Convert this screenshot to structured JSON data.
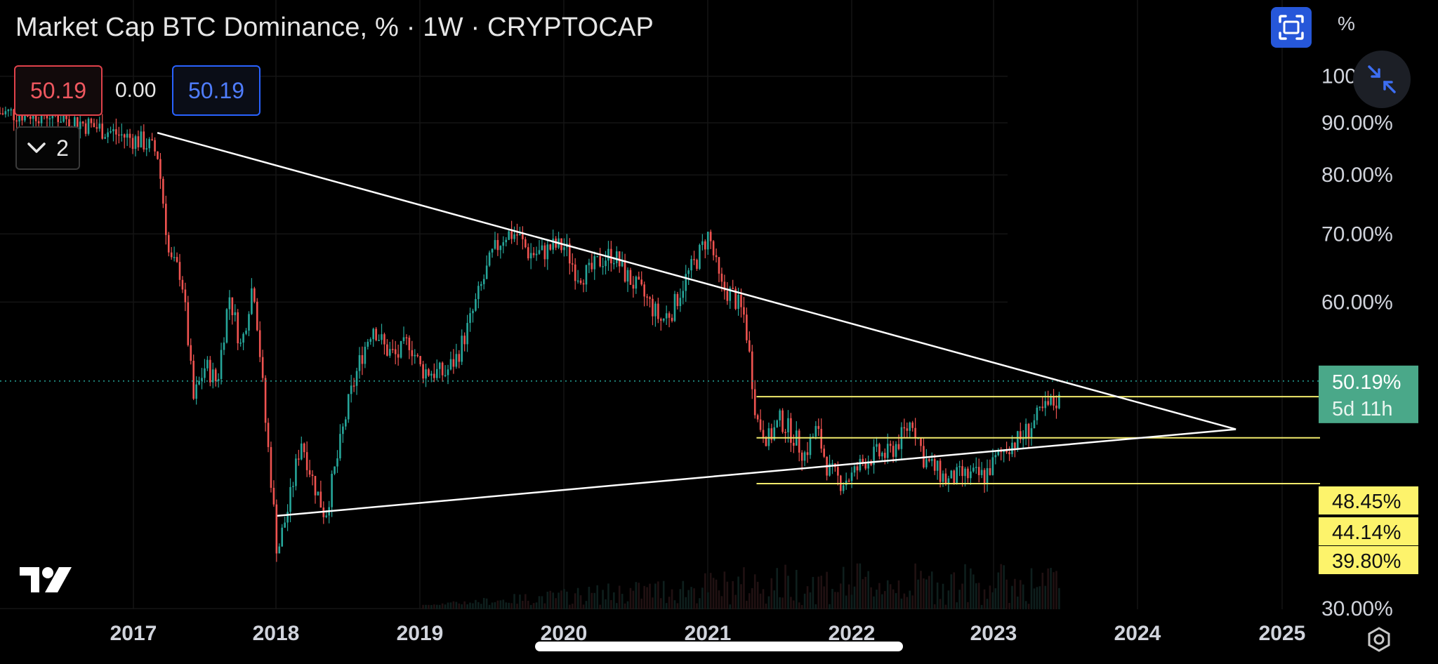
{
  "header": {
    "title": "Market Cap BTC Dominance, % · 1W · CRYPTOCAP",
    "values": {
      "sell": "50.19",
      "spread": "0.00",
      "buy": "50.19"
    },
    "indicators_toggle": {
      "count": "2"
    },
    "percent_mode_label": "%"
  },
  "icons": {
    "fullscreen": "fullscreen-icon",
    "shrink": "shrink-arrows-icon",
    "logo": "tradingview-logo-icon",
    "settings": "settings-gear-icon",
    "chevron": "chevron-down-icon"
  },
  "colors": {
    "up": "#26a69a",
    "down": "#ef5350",
    "trendline": "#ffffff",
    "support_lines": "#f1ea6c",
    "current_badge": "#4aa889",
    "level_badge": "#fdf36b"
  },
  "chart_data": {
    "type": "candlestick",
    "title": "Market Cap BTC Dominance, % · 1W · CRYPTOCAP",
    "interval": "1W",
    "log_scale": true,
    "x_ticks": [
      "2017",
      "2018",
      "2019",
      "2020",
      "2021",
      "2022",
      "2023",
      "2024",
      "2025"
    ],
    "y_ticks": [
      "100.00%",
      "90.00%",
      "80.00%",
      "70.00%",
      "60.00%",
      "30.00%"
    ],
    "y_range": [
      28,
      105
    ],
    "last_price": {
      "value": "50.19%",
      "countdown": "5d 11h"
    },
    "horizontal_levels": [
      "48.45%",
      "44.14%",
      "39.80%"
    ],
    "price_path": [
      [
        "2016-06",
        92
      ],
      [
        "2017-02",
        86
      ],
      [
        "2017-03",
        84
      ],
      [
        "2017-04",
        66
      ],
      [
        "2017-05",
        64
      ],
      [
        "2017-06",
        48
      ],
      [
        "2017-07",
        52
      ],
      [
        "2017-08",
        50
      ],
      [
        "2017-09",
        61
      ],
      [
        "2017-10",
        54
      ],
      [
        "2017-11",
        63
      ],
      [
        "2017-12",
        46
      ],
      [
        "2018-01",
        34
      ],
      [
        "2018-02",
        38
      ],
      [
        "2018-03",
        44
      ],
      [
        "2018-04",
        40
      ],
      [
        "2018-05",
        37
      ],
      [
        "2018-06",
        42
      ],
      [
        "2018-07",
        48
      ],
      [
        "2018-08",
        53
      ],
      [
        "2018-09",
        57
      ],
      [
        "2018-10",
        54
      ],
      [
        "2018-11",
        53
      ],
      [
        "2018-12",
        55
      ],
      [
        "2019-01",
        51.5
      ],
      [
        "2019-03",
        51
      ],
      [
        "2019-04",
        53
      ],
      [
        "2019-05",
        57
      ],
      [
        "2019-06",
        62
      ],
      [
        "2019-07",
        67
      ],
      [
        "2019-08",
        70
      ],
      [
        "2019-09",
        70
      ],
      [
        "2019-10",
        67
      ],
      [
        "2019-11",
        67
      ],
      [
        "2019-12",
        68
      ],
      [
        "2020-01",
        68
      ],
      [
        "2020-02",
        64
      ],
      [
        "2020-03",
        64
      ],
      [
        "2020-04",
        66
      ],
      [
        "2020-05",
        67
      ],
      [
        "2020-06",
        64
      ],
      [
        "2020-07",
        62
      ],
      [
        "2020-08",
        60
      ],
      [
        "2020-09",
        57.5
      ],
      [
        "2020-10",
        59
      ],
      [
        "2020-11",
        63
      ],
      [
        "2020-12",
        66
      ],
      [
        "2021-01",
        70
      ],
      [
        "2021-02",
        62
      ],
      [
        "2021-03",
        61
      ],
      [
        "2021-04",
        58
      ],
      [
        "2021-05",
        46
      ],
      [
        "2021-06",
        44
      ],
      [
        "2021-07",
        46
      ],
      [
        "2021-08",
        44.5
      ],
      [
        "2021-09",
        42.5
      ],
      [
        "2021-10",
        45
      ],
      [
        "2021-11",
        41
      ],
      [
        "2021-12",
        40
      ],
      [
        "2022-01",
        40.5
      ],
      [
        "2022-02",
        42
      ],
      [
        "2022-03",
        42.5
      ],
      [
        "2022-04",
        42.5
      ],
      [
        "2022-05",
        44
      ],
      [
        "2022-06",
        46
      ],
      [
        "2022-07",
        42
      ],
      [
        "2022-08",
        41
      ],
      [
        "2022-09",
        40
      ],
      [
        "2022-10",
        40.5
      ],
      [
        "2022-11",
        40.5
      ],
      [
        "2022-12",
        40.5
      ],
      [
        "2023-01",
        42
      ],
      [
        "2023-02",
        43.5
      ],
      [
        "2023-03",
        44
      ],
      [
        "2023-04",
        45.5
      ],
      [
        "2023-05",
        47
      ],
      [
        "2023-06",
        48
      ]
    ],
    "trendlines": [
      {
        "name": "",
        "from": [
          "2017-03",
          88
        ],
        "to": [
          "2024-09",
          45
        ]
      },
      {
        "name": "",
        "from": [
          "2018-01",
          37
        ],
        "to": [
          "2024-09",
          45
        ]
      }
    ]
  }
}
